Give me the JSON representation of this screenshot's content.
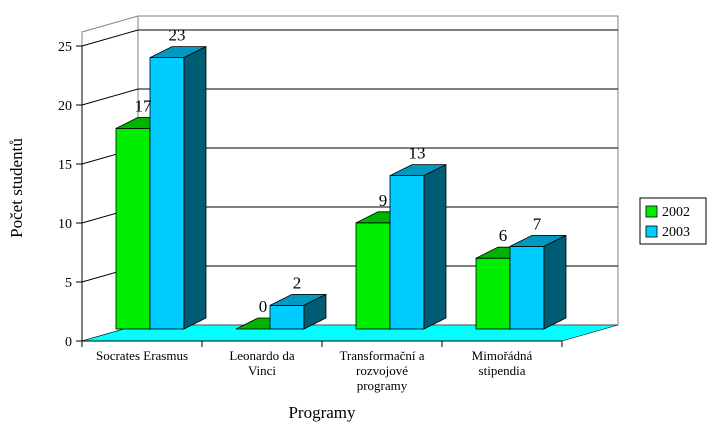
{
  "chart_data": {
    "type": "bar",
    "title": "",
    "xlabel": "Programy",
    "ylabel": "Počet studentů",
    "ylim": [
      0,
      25
    ],
    "yticks": [
      0,
      5,
      10,
      15,
      20,
      25
    ],
    "grid": true,
    "legend_position": "right",
    "categories": [
      [
        "Socrates Erasmus"
      ],
      [
        "Leonardo da",
        "Vinci"
      ],
      [
        "Transformační a",
        "rozvojové",
        "programy"
      ],
      [
        "Mimořádná",
        "stipendia"
      ]
    ],
    "series": [
      {
        "name": "2002",
        "values": [
          17,
          0,
          9,
          6
        ],
        "color": "#00ee00"
      },
      {
        "name": "2003",
        "values": [
          23,
          2,
          13,
          7
        ],
        "color": "#00ccff"
      }
    ],
    "floor_color": "#00ffff",
    "bar_edge_color": "#000000"
  }
}
